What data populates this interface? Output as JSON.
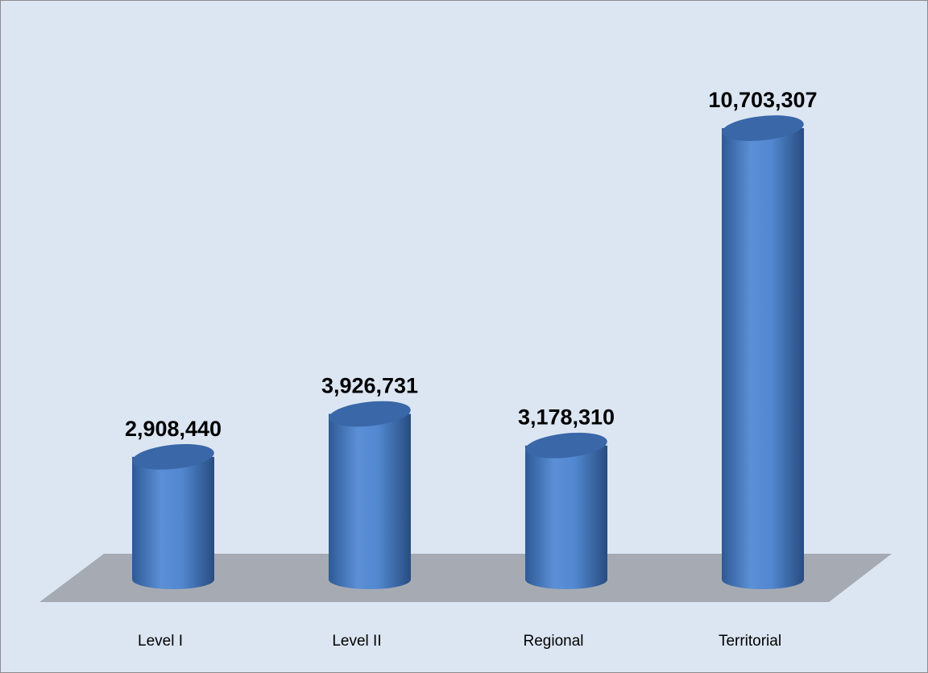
{
  "chart_data": {
    "type": "bar",
    "style": "3d-cylinder",
    "categories": [
      "Level I",
      "Level II",
      "Regional",
      "Territorial"
    ],
    "values": [
      2908440,
      3926731,
      3178310,
      10703307
    ],
    "value_labels": [
      "2,908,440",
      "3,926,731",
      "3,178,310",
      "10,703,307"
    ],
    "title": "",
    "xlabel": "",
    "ylabel": "",
    "ylim": [
      0,
      12000000
    ],
    "grid": false,
    "legend": "none",
    "colors": {
      "background": "#dce6f2",
      "floor": "#a6abb3",
      "bar_light": "#5b8fd6",
      "bar_mid": "#4a7cc2",
      "bar_dark": "#2c5286",
      "top": "#3a67a8"
    }
  }
}
